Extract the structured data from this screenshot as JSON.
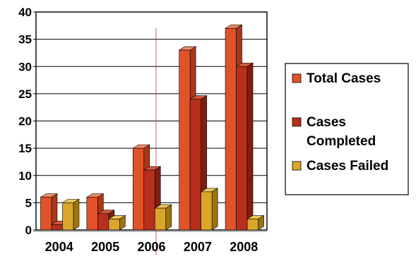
{
  "chart_data": {
    "type": "bar",
    "categories": [
      "2004",
      "2005",
      "2006",
      "2007",
      "2008"
    ],
    "series": [
      {
        "name": "Total Cases",
        "values": [
          6,
          6,
          15,
          33,
          37
        ],
        "color": "#e0522a",
        "side": "#a8381a",
        "top": "#f08a64"
      },
      {
        "name": "Cases Completed",
        "values": [
          1,
          3,
          11,
          24,
          30
        ],
        "color": "#b8301c",
        "side": "#7e1e10",
        "top": "#d4583e"
      },
      {
        "name": "Cases Failed",
        "values": [
          5,
          2,
          4,
          7,
          2
        ],
        "color": "#d9a62a",
        "side": "#9c7412",
        "top": "#ecc65a"
      }
    ],
    "ylim": [
      0,
      40
    ],
    "yticks": [
      0,
      5,
      10,
      15,
      20,
      25,
      30,
      35,
      40
    ],
    "grid": true,
    "legend_position": "right",
    "title": "",
    "xlabel": "",
    "ylabel": ""
  },
  "legend": {
    "items": [
      {
        "label_lines": [
          "Total Cases"
        ]
      },
      {
        "label_lines": [
          "Cases",
          "Completed"
        ]
      },
      {
        "label_lines": [
          "Cases Failed"
        ]
      }
    ]
  }
}
